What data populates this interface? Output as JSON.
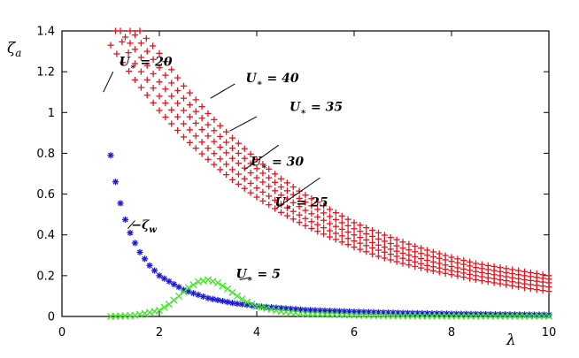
{
  "chart_data": {
    "type": "scatter",
    "title": "",
    "xlabel": "λ",
    "ylabel": "ζa",
    "xlim": [
      0,
      10
    ],
    "ylim": [
      0,
      1.4
    ],
    "xticks": [
      "0",
      "2",
      "4",
      "6",
      "8",
      "10"
    ],
    "yticks": [
      "0",
      "0.2",
      "0.4",
      "0.6",
      "0.8",
      "1",
      "1.2",
      "1.4"
    ],
    "grid": false,
    "legend": "none",
    "colors": {
      "u_series": "#e8131c",
      "zeta_w": "#1d1ad6",
      "u5": "#39e81e"
    },
    "series": [
      {
        "label": "U∗ = 20",
        "marker": "plus",
        "color": "#e8131c",
        "x": [
          1.0,
          1.5,
          2.0,
          2.5,
          3.0,
          3.5,
          4.0,
          4.5,
          5.0,
          5.5,
          6.0,
          6.5,
          7.0,
          7.5,
          8.0,
          8.5,
          9.0,
          9.5,
          10.0
        ],
        "y": [
          1.33,
          1.16,
          1.01,
          0.88,
          0.77,
          0.67,
          0.585,
          0.51,
          0.445,
          0.39,
          0.34,
          0.295,
          0.26,
          0.23,
          0.205,
          0.18,
          0.16,
          0.14,
          0.123
        ]
      },
      {
        "label": "U∗ = 25",
        "marker": "plus",
        "color": "#e8131c",
        "x": [
          1.1,
          1.5,
          2.0,
          2.5,
          3.0,
          3.5,
          4.0,
          4.5,
          5.0,
          5.5,
          6.0,
          6.5,
          7.0,
          7.5,
          8.0,
          8.5,
          9.0,
          9.5,
          10.0
        ],
        "y": [
          1.4,
          1.24,
          1.08,
          0.945,
          0.825,
          0.72,
          0.63,
          0.55,
          0.48,
          0.42,
          0.37,
          0.325,
          0.285,
          0.25,
          0.225,
          0.2,
          0.18,
          0.16,
          0.145
        ]
      },
      {
        "label": "U∗ = 30",
        "marker": "plus",
        "color": "#e8131c",
        "x": [
          1.2,
          1.5,
          2.0,
          2.5,
          3.0,
          3.5,
          4.0,
          4.5,
          5.0,
          5.5,
          6.0,
          6.5,
          7.0,
          7.5,
          8.0,
          8.5,
          9.0,
          9.5,
          10.0
        ],
        "y": [
          1.4,
          1.31,
          1.15,
          1.01,
          0.885,
          0.775,
          0.68,
          0.595,
          0.52,
          0.455,
          0.4,
          0.35,
          0.31,
          0.275,
          0.245,
          0.22,
          0.2,
          0.18,
          0.165
        ]
      },
      {
        "label": "U∗ = 35",
        "marker": "plus",
        "color": "#e8131c",
        "x": [
          1.4,
          1.5,
          2.0,
          2.5,
          3.0,
          3.5,
          4.0,
          4.5,
          5.0,
          5.5,
          6.0,
          6.5,
          7.0,
          7.5,
          8.0,
          8.5,
          9.0,
          9.5,
          10.0
        ],
        "y": [
          1.4,
          1.38,
          1.22,
          1.07,
          0.94,
          0.825,
          0.725,
          0.635,
          0.56,
          0.49,
          0.43,
          0.38,
          0.335,
          0.3,
          0.27,
          0.24,
          0.22,
          0.2,
          0.183
        ]
      },
      {
        "label": "U∗ = 40",
        "marker": "plus",
        "color": "#e8131c",
        "x": [
          1.6,
          2.0,
          2.5,
          3.0,
          3.5,
          4.0,
          4.5,
          5.0,
          5.5,
          6.0,
          6.5,
          7.0,
          7.5,
          8.0,
          8.5,
          9.0,
          9.5,
          10.0
        ],
        "y": [
          1.4,
          1.29,
          1.13,
          0.995,
          0.875,
          0.77,
          0.675,
          0.595,
          0.525,
          0.46,
          0.41,
          0.365,
          0.325,
          0.29,
          0.26,
          0.24,
          0.22,
          0.2
        ]
      },
      {
        "label": "−ζw",
        "marker": "star",
        "color": "#1d1ad6",
        "x": [
          1.0,
          1.1,
          1.2,
          1.3,
          1.4,
          1.5,
          1.6,
          1.8,
          2.0,
          2.5,
          3.0,
          3.5,
          4.0,
          5.0,
          6.0,
          7.0,
          8.0,
          9.0,
          10.0
        ],
        "y": [
          0.79,
          0.66,
          0.555,
          0.475,
          0.41,
          0.36,
          0.315,
          0.25,
          0.2,
          0.13,
          0.09,
          0.066,
          0.05,
          0.032,
          0.023,
          0.017,
          0.013,
          0.01,
          0.008
        ]
      },
      {
        "label": "U∗ = 5",
        "marker": "cross",
        "color": "#39e81e",
        "x": [
          1.0,
          1.5,
          2.0,
          2.2,
          2.4,
          2.6,
          2.8,
          3.0,
          3.2,
          3.4,
          3.6,
          3.8,
          4.0,
          4.5,
          5.0,
          6.0,
          7.0,
          8.0,
          9.0,
          10.0
        ],
        "y": [
          0.0,
          0.005,
          0.03,
          0.06,
          0.1,
          0.14,
          0.17,
          0.18,
          0.165,
          0.135,
          0.1,
          0.07,
          0.05,
          0.025,
          0.013,
          0.006,
          0.004,
          0.003,
          0.002,
          0.002
        ]
      }
    ],
    "annotations": [
      {
        "base": "U",
        "sub": "∗",
        "rest": " = 40",
        "tx": 3.7,
        "ty": 1.14,
        "ax": 3.0,
        "ay": 1.15
      },
      {
        "base": "U",
        "sub": "∗",
        "rest": " = 35",
        "tx": 4.6,
        "ty": 1.0,
        "ax": 4.8,
        "ay": 1.0
      },
      {
        "base": "U",
        "sub": "∗",
        "rest": " = 30",
        "tx": 3.8,
        "ty": 0.73,
        "ax": 4.4,
        "ay": 0.83
      },
      {
        "base": "U",
        "sub": "∗",
        "rest": " = 25",
        "tx": 4.3,
        "ty": 0.53,
        "ax": 5.3,
        "ay": 0.68
      },
      {
        "base": "U",
        "sub": "∗",
        "rest": " = 20",
        "tx": 1.1,
        "ty": 1.22,
        "ax": 0.2,
        "ay": 1.1
      },
      {
        "base": "−ζ",
        "sub": "w",
        "rest": "",
        "tx": 1.35,
        "ty": 0.42,
        "ax": 1.5,
        "ay": 0.48
      },
      {
        "base": "U",
        "sub": "∗",
        "rest": " = 5",
        "tx": 3.5,
        "ty": 0.18,
        "ax": 3.8,
        "ay": 0.19
      }
    ]
  }
}
